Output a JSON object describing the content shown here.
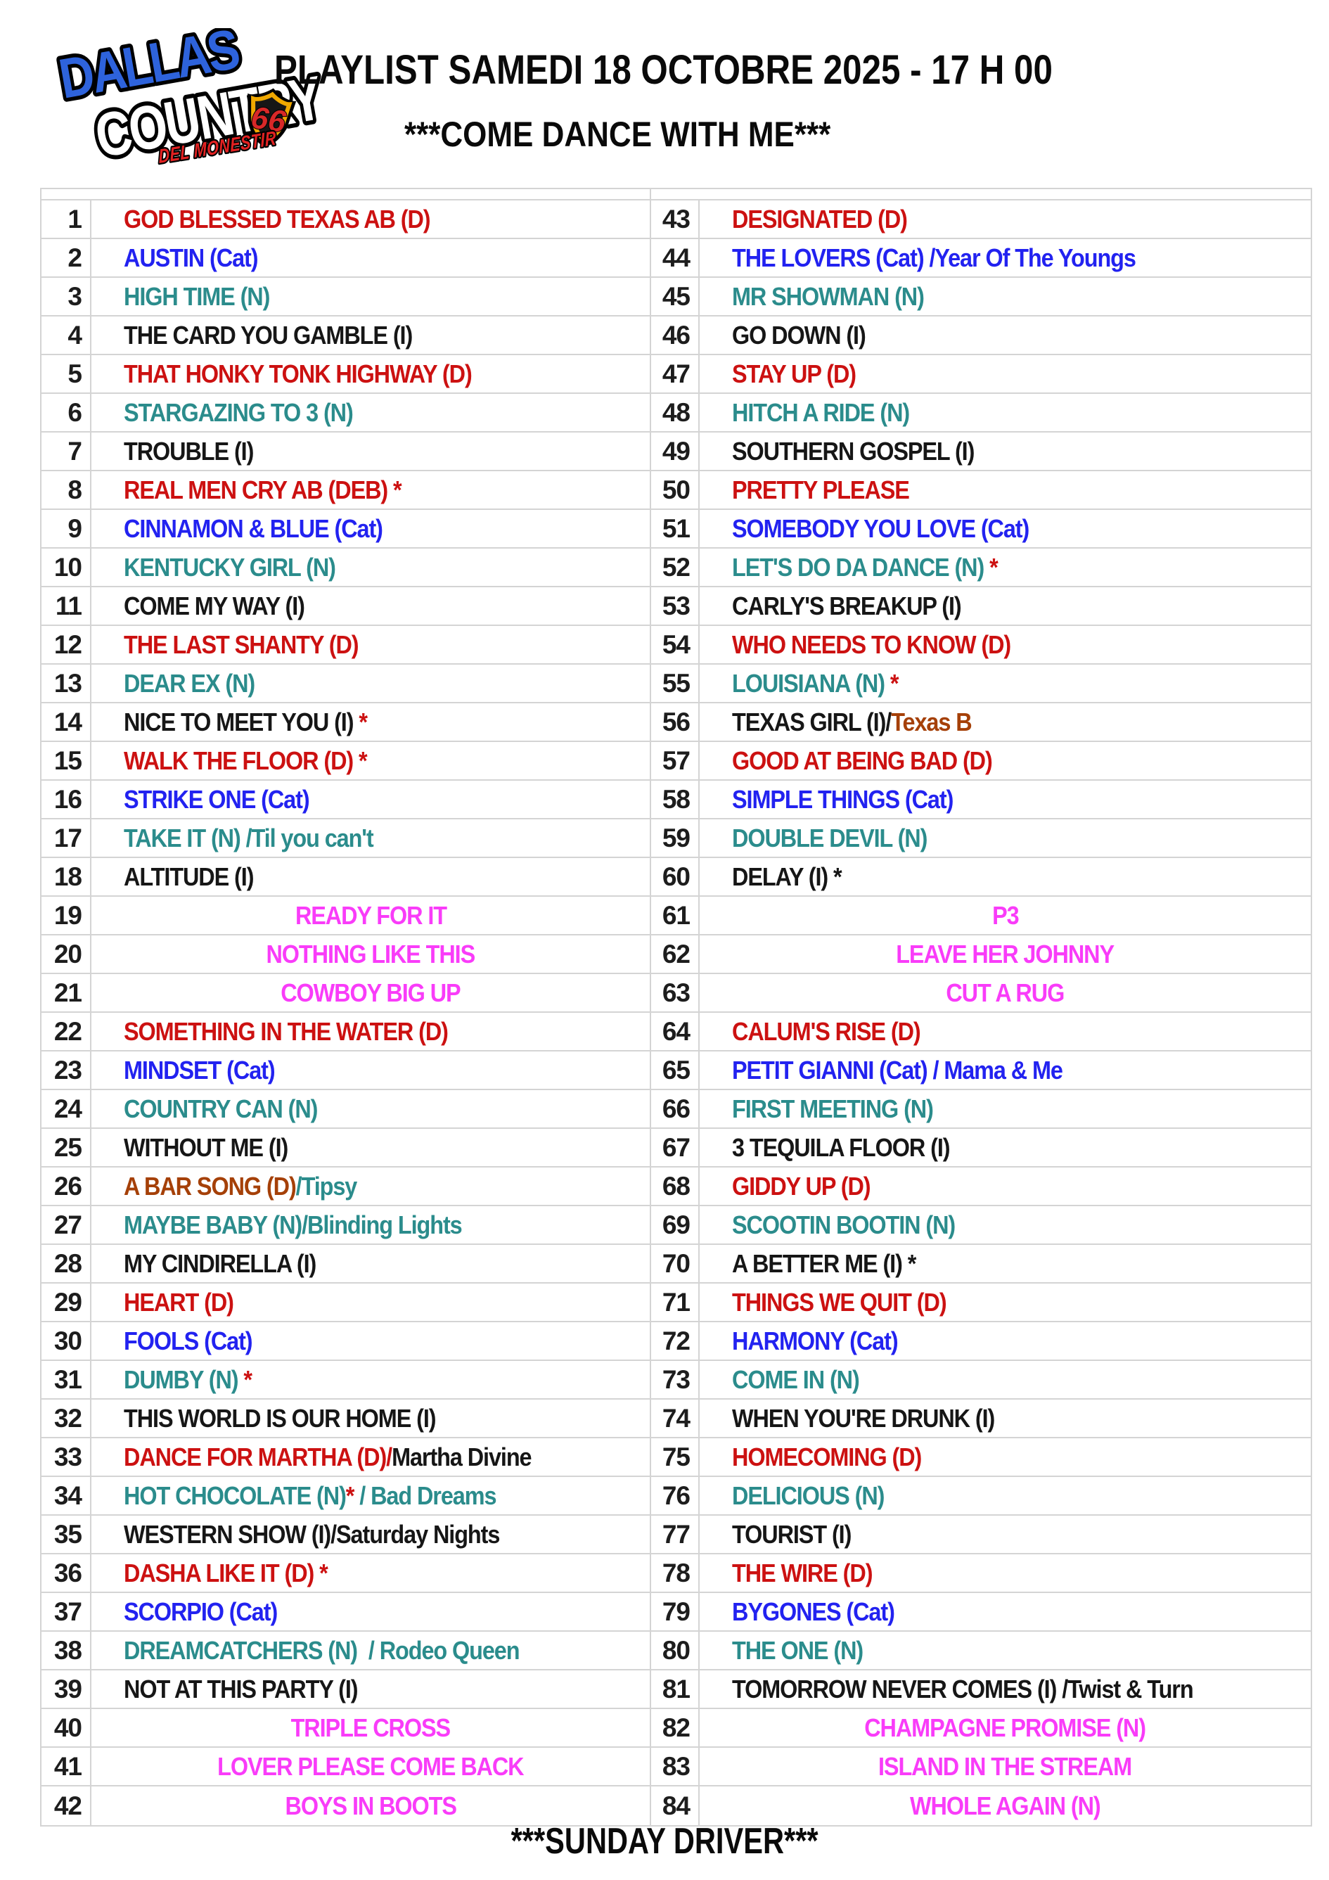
{
  "header": {
    "logo": {
      "line1": "DALLAS",
      "line2": "COUNTRY",
      "badge": "66",
      "line3": "DEL MONESTIR",
      "blue": "#2E63DC",
      "badge_rim": "#F0A800",
      "badge_red": "#D82828",
      "line3_red": "#E22222"
    },
    "title": "PLAYLIST SAMEDI 18 OCTOBRE 2025 - 17 H 00",
    "subtitle": "***COME DANCE WITH ME***"
  },
  "footer": {
    "text": "***SUNDAY DRIVER***"
  },
  "colors": {
    "red": "#CC1111",
    "blue": "#2222F0",
    "teal": "#2B8C8C",
    "black": "#161616",
    "magenta": "#F93CF9",
    "brown": "#A54008"
  },
  "rows": [
    {
      "n": 1,
      "align": "left",
      "segments": [
        {
          "t": "GOD BLESSED TEXAS AB (D)",
          "c": "red"
        }
      ]
    },
    {
      "n": 2,
      "align": "left",
      "segments": [
        {
          "t": "AUSTIN (Cat)",
          "c": "blue"
        }
      ]
    },
    {
      "n": 3,
      "align": "left",
      "segments": [
        {
          "t": "HIGH TIME (N)",
          "c": "teal"
        }
      ]
    },
    {
      "n": 4,
      "align": "left",
      "segments": [
        {
          "t": "THE CARD YOU GAMBLE (I)",
          "c": "black"
        }
      ]
    },
    {
      "n": 5,
      "align": "left",
      "segments": [
        {
          "t": "THAT HONKY TONK HIGHWAY (D)",
          "c": "red"
        }
      ]
    },
    {
      "n": 6,
      "align": "left",
      "segments": [
        {
          "t": "STARGAZING TO 3 (N)",
          "c": "teal"
        }
      ]
    },
    {
      "n": 7,
      "align": "left",
      "segments": [
        {
          "t": "TROUBLE (I)",
          "c": "black"
        }
      ]
    },
    {
      "n": 8,
      "align": "left",
      "segments": [
        {
          "t": "REAL MEN CRY AB (DEB) *",
          "c": "red"
        }
      ]
    },
    {
      "n": 9,
      "align": "left",
      "segments": [
        {
          "t": "CINNAMON & BLUE (Cat)",
          "c": "blue"
        }
      ]
    },
    {
      "n": 10,
      "align": "left",
      "segments": [
        {
          "t": "KENTUCKY GIRL (N)",
          "c": "teal"
        }
      ]
    },
    {
      "n": 11,
      "align": "left",
      "segments": [
        {
          "t": "COME MY WAY (I)",
          "c": "black"
        }
      ]
    },
    {
      "n": 12,
      "align": "left",
      "segments": [
        {
          "t": "THE LAST SHANTY (D)",
          "c": "red"
        }
      ]
    },
    {
      "n": 13,
      "align": "left",
      "segments": [
        {
          "t": "DEAR EX (N)",
          "c": "teal"
        }
      ]
    },
    {
      "n": 14,
      "align": "left",
      "segments": [
        {
          "t": "NICE TO MEET YOU (I) ",
          "c": "black"
        },
        {
          "t": "*",
          "c": "red"
        }
      ]
    },
    {
      "n": 15,
      "align": "left",
      "segments": [
        {
          "t": "WALK THE FLOOR (D) *",
          "c": "red"
        }
      ]
    },
    {
      "n": 16,
      "align": "left",
      "segments": [
        {
          "t": "STRIKE ONE (Cat)",
          "c": "blue"
        }
      ]
    },
    {
      "n": 17,
      "align": "left",
      "segments": [
        {
          "t": "TAKE IT (N) /Til you can't",
          "c": "teal"
        }
      ]
    },
    {
      "n": 18,
      "align": "left",
      "segments": [
        {
          "t": "ALTITUDE (I)",
          "c": "black"
        }
      ]
    },
    {
      "n": 19,
      "align": "center",
      "segments": [
        {
          "t": "READY FOR IT",
          "c": "magenta"
        }
      ]
    },
    {
      "n": 20,
      "align": "center",
      "segments": [
        {
          "t": "NOTHING LIKE THIS",
          "c": "magenta"
        }
      ]
    },
    {
      "n": 21,
      "align": "center",
      "segments": [
        {
          "t": "COWBOY BIG UP",
          "c": "magenta"
        }
      ]
    },
    {
      "n": 22,
      "align": "left",
      "segments": [
        {
          "t": "SOMETHING IN THE WATER (D)",
          "c": "red"
        }
      ]
    },
    {
      "n": 23,
      "align": "left",
      "segments": [
        {
          "t": "MINDSET (Cat)",
          "c": "blue"
        }
      ]
    },
    {
      "n": 24,
      "align": "left",
      "segments": [
        {
          "t": "COUNTRY CAN (N)",
          "c": "teal"
        }
      ]
    },
    {
      "n": 25,
      "align": "left",
      "segments": [
        {
          "t": "WITHOUT ME (I)",
          "c": "black"
        }
      ]
    },
    {
      "n": 26,
      "align": "left",
      "segments": [
        {
          "t": "A BAR SONG (D)",
          "c": "brown"
        },
        {
          "t": "/Tipsy",
          "c": "teal"
        }
      ]
    },
    {
      "n": 27,
      "align": "left",
      "segments": [
        {
          "t": "MAYBE BABY (N)/Blinding Lights",
          "c": "teal"
        }
      ]
    },
    {
      "n": 28,
      "align": "left",
      "segments": [
        {
          "t": "MY CINDIRELLA (I)",
          "c": "black"
        }
      ]
    },
    {
      "n": 29,
      "align": "left",
      "segments": [
        {
          "t": "HEART (D)",
          "c": "red"
        }
      ]
    },
    {
      "n": 30,
      "align": "left",
      "segments": [
        {
          "t": "FOOLS (Cat)",
          "c": "blue"
        }
      ]
    },
    {
      "n": 31,
      "align": "left",
      "segments": [
        {
          "t": "DUMBY (N) ",
          "c": "teal"
        },
        {
          "t": "*",
          "c": "red"
        }
      ]
    },
    {
      "n": 32,
      "align": "left",
      "segments": [
        {
          "t": "THIS WORLD IS OUR HOME (I)",
          "c": "black"
        }
      ]
    },
    {
      "n": 33,
      "align": "left",
      "segments": [
        {
          "t": "DANCE FOR MARTHA (D)/",
          "c": "red"
        },
        {
          "t": "Martha Divine",
          "c": "black"
        }
      ]
    },
    {
      "n": 34,
      "align": "left",
      "segments": [
        {
          "t": "HOT CHOCOLATE (N)",
          "c": "teal"
        },
        {
          "t": "*",
          "c": "red"
        },
        {
          "t": " / Bad Dreams",
          "c": "teal"
        }
      ]
    },
    {
      "n": 35,
      "align": "left",
      "segments": [
        {
          "t": "WESTERN SHOW (I)/Saturday Nights",
          "c": "black"
        }
      ]
    },
    {
      "n": 36,
      "align": "left",
      "segments": [
        {
          "t": "DASHA LIKE IT (D) *",
          "c": "red"
        }
      ]
    },
    {
      "n": 37,
      "align": "left",
      "segments": [
        {
          "t": "SCORPIO (Cat)",
          "c": "blue"
        }
      ]
    },
    {
      "n": 38,
      "align": "left",
      "segments": [
        {
          "t": "DREAMCATCHERS (N)  / Rodeo Queen",
          "c": "teal"
        }
      ]
    },
    {
      "n": 39,
      "align": "left",
      "segments": [
        {
          "t": "NOT AT THIS PARTY (I)",
          "c": "black"
        }
      ]
    },
    {
      "n": 40,
      "align": "center",
      "segments": [
        {
          "t": "TRIPLE CROSS",
          "c": "magenta"
        }
      ]
    },
    {
      "n": 41,
      "align": "center",
      "segments": [
        {
          "t": "LOVER PLEASE COME BACK",
          "c": "magenta"
        }
      ]
    },
    {
      "n": 42,
      "align": "center",
      "segments": [
        {
          "t": "BOYS IN BOOTS",
          "c": "magenta"
        }
      ]
    },
    {
      "n": 43,
      "align": "left",
      "segments": [
        {
          "t": "DESIGNATED (D)",
          "c": "red"
        }
      ]
    },
    {
      "n": 44,
      "align": "left",
      "segments": [
        {
          "t": "THE LOVERS (Cat) /Year Of The Youngs",
          "c": "blue"
        }
      ]
    },
    {
      "n": 45,
      "align": "left",
      "segments": [
        {
          "t": "MR SHOWMAN (N)",
          "c": "teal"
        }
      ]
    },
    {
      "n": 46,
      "align": "left",
      "segments": [
        {
          "t": "GO DOWN (I)",
          "c": "black"
        }
      ]
    },
    {
      "n": 47,
      "align": "left",
      "segments": [
        {
          "t": "STAY UP (D)",
          "c": "red"
        }
      ]
    },
    {
      "n": 48,
      "align": "left",
      "segments": [
        {
          "t": "HITCH A RIDE (N)",
          "c": "teal"
        }
      ]
    },
    {
      "n": 49,
      "align": "left",
      "segments": [
        {
          "t": "SOUTHERN GOSPEL (I)",
          "c": "black"
        }
      ]
    },
    {
      "n": 50,
      "align": "left",
      "segments": [
        {
          "t": "PRETTY PLEASE",
          "c": "red"
        }
      ]
    },
    {
      "n": 51,
      "align": "left",
      "segments": [
        {
          "t": "SOMEBODY YOU LOVE (Cat)",
          "c": "blue"
        }
      ]
    },
    {
      "n": 52,
      "align": "left",
      "segments": [
        {
          "t": "LET'S DO DA DANCE (N) ",
          "c": "teal"
        },
        {
          "t": "*",
          "c": "red"
        }
      ]
    },
    {
      "n": 53,
      "align": "left",
      "segments": [
        {
          "t": "CARLY'S BREAKUP (I)",
          "c": "black"
        }
      ]
    },
    {
      "n": 54,
      "align": "left",
      "segments": [
        {
          "t": "WHO NEEDS TO KNOW (D)",
          "c": "red"
        }
      ]
    },
    {
      "n": 55,
      "align": "left",
      "segments": [
        {
          "t": "LOUISIANA (N) ",
          "c": "teal"
        },
        {
          "t": "*",
          "c": "red"
        }
      ]
    },
    {
      "n": 56,
      "align": "left",
      "segments": [
        {
          "t": "TEXAS GIRL (I)/",
          "c": "black"
        },
        {
          "t": "Texas B",
          "c": "brown"
        }
      ]
    },
    {
      "n": 57,
      "align": "left",
      "segments": [
        {
          "t": "GOOD AT BEING BAD (D)",
          "c": "red"
        }
      ]
    },
    {
      "n": 58,
      "align": "left",
      "segments": [
        {
          "t": "SIMPLE THINGS (Cat)",
          "c": "blue"
        }
      ]
    },
    {
      "n": 59,
      "align": "left",
      "segments": [
        {
          "t": "DOUBLE DEVIL (N)",
          "c": "teal"
        }
      ]
    },
    {
      "n": 60,
      "align": "left",
      "segments": [
        {
          "t": "DELAY (I) *",
          "c": "black"
        }
      ]
    },
    {
      "n": 61,
      "align": "center",
      "segments": [
        {
          "t": "P3",
          "c": "magenta"
        }
      ]
    },
    {
      "n": 62,
      "align": "center",
      "segments": [
        {
          "t": "LEAVE HER JOHNNY",
          "c": "magenta"
        }
      ]
    },
    {
      "n": 63,
      "align": "center",
      "segments": [
        {
          "t": "CUT A RUG",
          "c": "magenta"
        }
      ]
    },
    {
      "n": 64,
      "align": "left",
      "segments": [
        {
          "t": "CALUM'S RISE (D)",
          "c": "red"
        }
      ]
    },
    {
      "n": 65,
      "align": "left",
      "segments": [
        {
          "t": "PETIT GIANNI (Cat) / Mama & Me",
          "c": "blue"
        }
      ]
    },
    {
      "n": 66,
      "align": "left",
      "segments": [
        {
          "t": "FIRST MEETING (N)",
          "c": "teal"
        }
      ]
    },
    {
      "n": 67,
      "align": "left",
      "segments": [
        {
          "t": "3 TEQUILA FLOOR (I)",
          "c": "black"
        }
      ]
    },
    {
      "n": 68,
      "align": "left",
      "segments": [
        {
          "t": "GIDDY UP (D)",
          "c": "red"
        }
      ]
    },
    {
      "n": 69,
      "align": "left",
      "segments": [
        {
          "t": "SCOOTIN BOOTIN (N)",
          "c": "teal"
        }
      ]
    },
    {
      "n": 70,
      "align": "left",
      "segments": [
        {
          "t": "A BETTER ME (I) *",
          "c": "black"
        }
      ]
    },
    {
      "n": 71,
      "align": "left",
      "segments": [
        {
          "t": "THINGS WE QUIT (D)",
          "c": "red"
        }
      ]
    },
    {
      "n": 72,
      "align": "left",
      "segments": [
        {
          "t": "HARMONY (Cat)",
          "c": "blue"
        }
      ]
    },
    {
      "n": 73,
      "align": "left",
      "segments": [
        {
          "t": "COME IN (N)",
          "c": "teal"
        }
      ]
    },
    {
      "n": 74,
      "align": "left",
      "segments": [
        {
          "t": "WHEN YOU'RE DRUNK (I)",
          "c": "black"
        }
      ]
    },
    {
      "n": 75,
      "align": "left",
      "segments": [
        {
          "t": "HOMECOMING (D)",
          "c": "red"
        }
      ]
    },
    {
      "n": 76,
      "align": "left",
      "segments": [
        {
          "t": "DELICIOUS (N)",
          "c": "teal"
        }
      ]
    },
    {
      "n": 77,
      "align": "left",
      "segments": [
        {
          "t": "TOURIST (I)",
          "c": "black"
        }
      ]
    },
    {
      "n": 78,
      "align": "left",
      "segments": [
        {
          "t": "THE WIRE (D)",
          "c": "red"
        }
      ]
    },
    {
      "n": 79,
      "align": "left",
      "segments": [
        {
          "t": "BYGONES (Cat)",
          "c": "blue"
        }
      ]
    },
    {
      "n": 80,
      "align": "left",
      "segments": [
        {
          "t": "THE ONE (N)",
          "c": "teal"
        }
      ]
    },
    {
      "n": 81,
      "align": "left",
      "segments": [
        {
          "t": "TOMORROW NEVER COMES (I) /Twist & Turn",
          "c": "black"
        }
      ]
    },
    {
      "n": 82,
      "align": "center",
      "segments": [
        {
          "t": "CHAMPAGNE PROMISE (N)",
          "c": "magenta"
        }
      ]
    },
    {
      "n": 83,
      "align": "center",
      "segments": [
        {
          "t": "ISLAND IN THE STREAM",
          "c": "magenta"
        }
      ]
    },
    {
      "n": 84,
      "align": "center",
      "segments": [
        {
          "t": "WHOLE AGAIN (N)",
          "c": "magenta"
        }
      ]
    }
  ]
}
